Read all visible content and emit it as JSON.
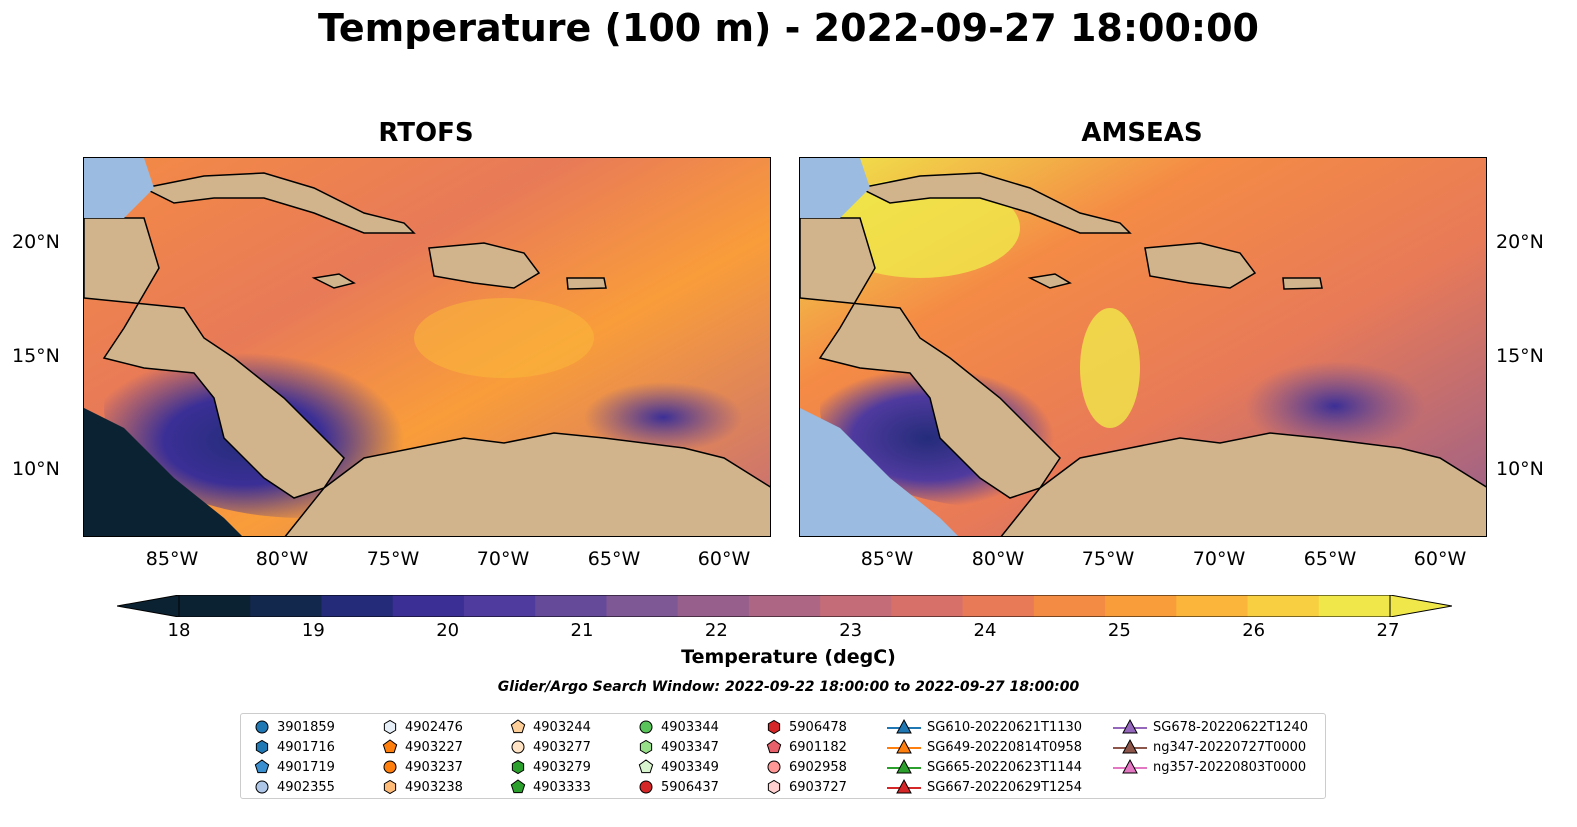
{
  "title": "Temperature (100 m) - 2022-09-27 18:00:00",
  "panels": [
    {
      "title": "RTOFS"
    },
    {
      "title": "AMSEAS"
    }
  ],
  "lat_labels": [
    "20°N",
    "15°N",
    "10°N"
  ],
  "lon_labels": [
    "85°W",
    "80°W",
    "75°W",
    "70°W",
    "65°W",
    "60°W"
  ],
  "colorbar": {
    "label": "Temperature (degC)",
    "ticks": [
      "18",
      "19",
      "20",
      "21",
      "22",
      "23",
      "24",
      "25",
      "26",
      "27"
    ],
    "colors": [
      "#0b2233",
      "#13284d",
      "#242c7a",
      "#3b2f96",
      "#4f3a9e",
      "#654a9a",
      "#7e5795",
      "#965f8c",
      "#ad6683",
      "#c46c78",
      "#d8706a",
      "#e87a58",
      "#f48b45",
      "#f99d3a",
      "#fab53a",
      "#f8cf40",
      "#f0e84a"
    ]
  },
  "search_window": "Glider/Argo Search Window: 2022-09-22 18:00:00 to 2022-09-27 18:00:00",
  "legend": {
    "items": [
      {
        "label": "3901859",
        "marker": "circle",
        "color": "#1f77b4"
      },
      {
        "label": "4901716",
        "marker": "hexagon",
        "color": "#1f77b4"
      },
      {
        "label": "4901719",
        "marker": "pentagon",
        "color": "#3a8fd0"
      },
      {
        "label": "4902355",
        "marker": "circle",
        "color": "#aec7e8"
      },
      {
        "label": "4902476",
        "marker": "hexagon",
        "color": "#e6eef8"
      },
      {
        "label": "4903227",
        "marker": "pentagon",
        "color": "#ff7f0e"
      },
      {
        "label": "4903237",
        "marker": "circle",
        "color": "#ff7f0e"
      },
      {
        "label": "4903238",
        "marker": "hexagon",
        "color": "#ffbb78"
      },
      {
        "label": "4903244",
        "marker": "pentagon",
        "color": "#ffcf99"
      },
      {
        "label": "4903277",
        "marker": "circle",
        "color": "#ffe3c4"
      },
      {
        "label": "4903279",
        "marker": "hexagon",
        "color": "#2ca02c"
      },
      {
        "label": "4903333",
        "marker": "pentagon",
        "color": "#2ca02c"
      },
      {
        "label": "4903344",
        "marker": "circle",
        "color": "#59c459"
      },
      {
        "label": "4903347",
        "marker": "hexagon",
        "color": "#98df8a"
      },
      {
        "label": "4903349",
        "marker": "pentagon",
        "color": "#d8f5d0"
      },
      {
        "label": "5906437",
        "marker": "circle",
        "color": "#d62728"
      },
      {
        "label": "5906478",
        "marker": "hexagon",
        "color": "#d62728"
      },
      {
        "label": "6901182",
        "marker": "pentagon",
        "color": "#e8606a"
      },
      {
        "label": "6902958",
        "marker": "circle",
        "color": "#ff9896"
      },
      {
        "label": "6903727",
        "marker": "hexagon",
        "color": "#ffd0cf"
      },
      {
        "label": "SG610-20220621T1130",
        "marker": "triangle",
        "color": "#1f77b4"
      },
      {
        "label": "SG649-20220814T0958",
        "marker": "triangle",
        "color": "#ff7f0e"
      },
      {
        "label": "SG665-20220623T1144",
        "marker": "triangle",
        "color": "#2ca02c"
      },
      {
        "label": "SG667-20220629T1254",
        "marker": "triangle",
        "color": "#d62728"
      },
      {
        "label": "SG678-20220622T1240",
        "marker": "triangle",
        "color": "#9467bd"
      },
      {
        "label": "ng347-20220727T0000",
        "marker": "triangle",
        "color": "#8c564b"
      },
      {
        "label": "ng357-20220803T0000",
        "marker": "triangle",
        "color": "#e377c2"
      }
    ]
  },
  "colors": {
    "land": "#d2b48c",
    "shallow_water": "#9bbbe0",
    "border": "#000000"
  }
}
